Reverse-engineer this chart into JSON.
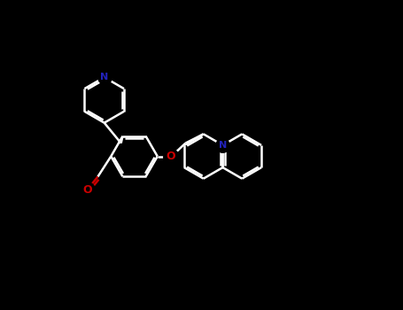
{
  "bg_color": "#000000",
  "bond_color": "#ffffff",
  "N_color": "#2222bb",
  "O_color": "#cc0000",
  "bond_lw": 1.8,
  "dbl_off": 0.008,
  "figsize": [
    4.55,
    3.5
  ],
  "dpi": 100,
  "xlim": [
    -0.05,
    1.05
  ],
  "ylim": [
    -0.05,
    1.05
  ]
}
